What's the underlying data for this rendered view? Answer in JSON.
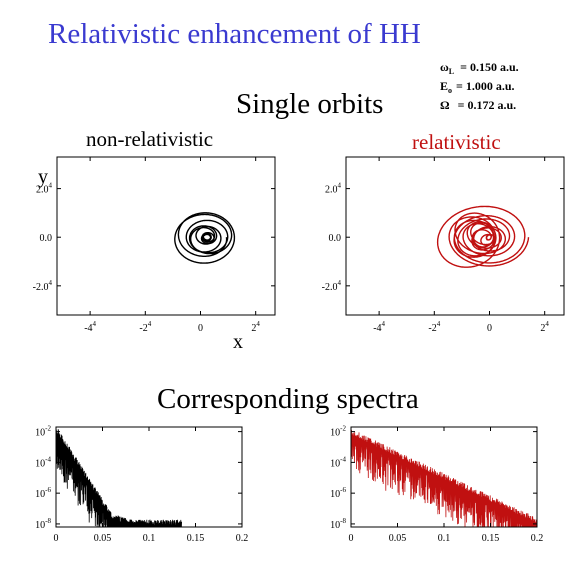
{
  "slide": {
    "title": "Relativistic enhancement of HH",
    "single_orbits_heading": "Single orbits",
    "spectra_heading": "Corresponding spectra",
    "params": [
      {
        "symbol": "ω",
        "sub": "L",
        "value": "= 0.150 a.u."
      },
      {
        "symbol": "E",
        "sub": "o",
        "value": "= 1.000 a.u."
      },
      {
        "symbol": "Ω",
        "sub": "",
        "value": "= 0.172 a.u."
      }
    ],
    "colors": {
      "title": "#3a3ad0",
      "nonrel": "#000000",
      "rel": "#c01010"
    }
  },
  "chart_data": [
    {
      "id": "orbit-nonrel",
      "type": "line",
      "title": "non-relativistic",
      "xlabel": "x",
      "ylabel": "y",
      "xlim": [
        -52000,
        27000
      ],
      "ylim": [
        -32000,
        33000
      ],
      "xticks": [
        {
          "v": -40000,
          "m": "-4",
          "e": "4"
        },
        {
          "v": -20000,
          "m": "-2",
          "e": "4"
        },
        {
          "v": 0,
          "m": "0",
          "e": ""
        },
        {
          "v": 20000,
          "m": "2",
          "e": "4"
        }
      ],
      "yticks": [
        {
          "v": 20000,
          "m": "2.0",
          "e": "4"
        },
        {
          "v": 0,
          "m": "0.0",
          "e": ""
        },
        {
          "v": -20000,
          "m": "-2.0",
          "e": "4"
        }
      ],
      "color": "#000000",
      "orbit": {
        "center": [
          2500,
          0
        ],
        "r_min": 1200,
        "r_max": 12000,
        "loops": 10
      }
    },
    {
      "id": "orbit-rel",
      "type": "line",
      "title": "relativistic",
      "xlabel": "",
      "ylabel": "",
      "xlim": [
        -52000,
        27000
      ],
      "ylim": [
        -32000,
        33000
      ],
      "xticks": [
        {
          "v": -40000,
          "m": "-4",
          "e": "4"
        },
        {
          "v": -20000,
          "m": "-2",
          "e": "4"
        },
        {
          "v": 0,
          "m": "0",
          "e": ""
        },
        {
          "v": 20000,
          "m": "2",
          "e": "4"
        }
      ],
      "yticks": [
        {
          "v": 20000,
          "m": "2.0",
          "e": "4"
        },
        {
          "v": 0,
          "m": "0.0",
          "e": ""
        },
        {
          "v": -20000,
          "m": "-2.0",
          "e": "4"
        }
      ],
      "color": "#c01010",
      "orbit": {
        "center": [
          0,
          0
        ],
        "r_min": 800,
        "r_max": 35000,
        "loops": 14
      }
    },
    {
      "id": "spectrum-nonrel",
      "type": "line",
      "title": "",
      "xlim": [
        0,
        0.2
      ],
      "ylim_log10": [
        -8.2,
        -1.7
      ],
      "log_y": true,
      "xticks": [
        {
          "v": 0,
          "t": "0"
        },
        {
          "v": 0.05,
          "t": "0.05"
        },
        {
          "v": 0.1,
          "t": "0.1"
        },
        {
          "v": 0.15,
          "t": "0.15"
        },
        {
          "v": 0.2,
          "t": "0.2"
        }
      ],
      "yticks": [
        {
          "v": -2,
          "m": "10",
          "e": "-2"
        },
        {
          "v": -4,
          "m": "10",
          "e": "-4"
        },
        {
          "v": -6,
          "m": "10",
          "e": "-6"
        },
        {
          "v": -8,
          "m": "10",
          "e": "-8"
        }
      ],
      "color": "#000000",
      "envelope": {
        "start_log10": -2.0,
        "slope_per_unit": -95,
        "cutoff": 0.06,
        "tail_log10": -8.1,
        "end_x": 0.135
      }
    },
    {
      "id": "spectrum-rel",
      "type": "line",
      "title": "",
      "xlim": [
        0,
        0.2
      ],
      "ylim_log10": [
        -8.2,
        -1.7
      ],
      "log_y": true,
      "xticks": [
        {
          "v": 0,
          "t": "0"
        },
        {
          "v": 0.05,
          "t": "0.05"
        },
        {
          "v": 0.1,
          "t": "0.1"
        },
        {
          "v": 0.15,
          "t": "0.15"
        },
        {
          "v": 0.2,
          "t": "0.2"
        }
      ],
      "yticks": [
        {
          "v": -2,
          "m": "10",
          "e": "-2"
        },
        {
          "v": -4,
          "m": "10",
          "e": "-4"
        },
        {
          "v": -6,
          "m": "10",
          "e": "-6"
        },
        {
          "v": -8,
          "m": "10",
          "e": "-8"
        }
      ],
      "color": "#c01010",
      "envelope": {
        "start_log10": -2.2,
        "slope_per_unit": -29,
        "cutoff": 0.2,
        "tail_log10": -8.1,
        "end_x": 0.2
      }
    }
  ]
}
